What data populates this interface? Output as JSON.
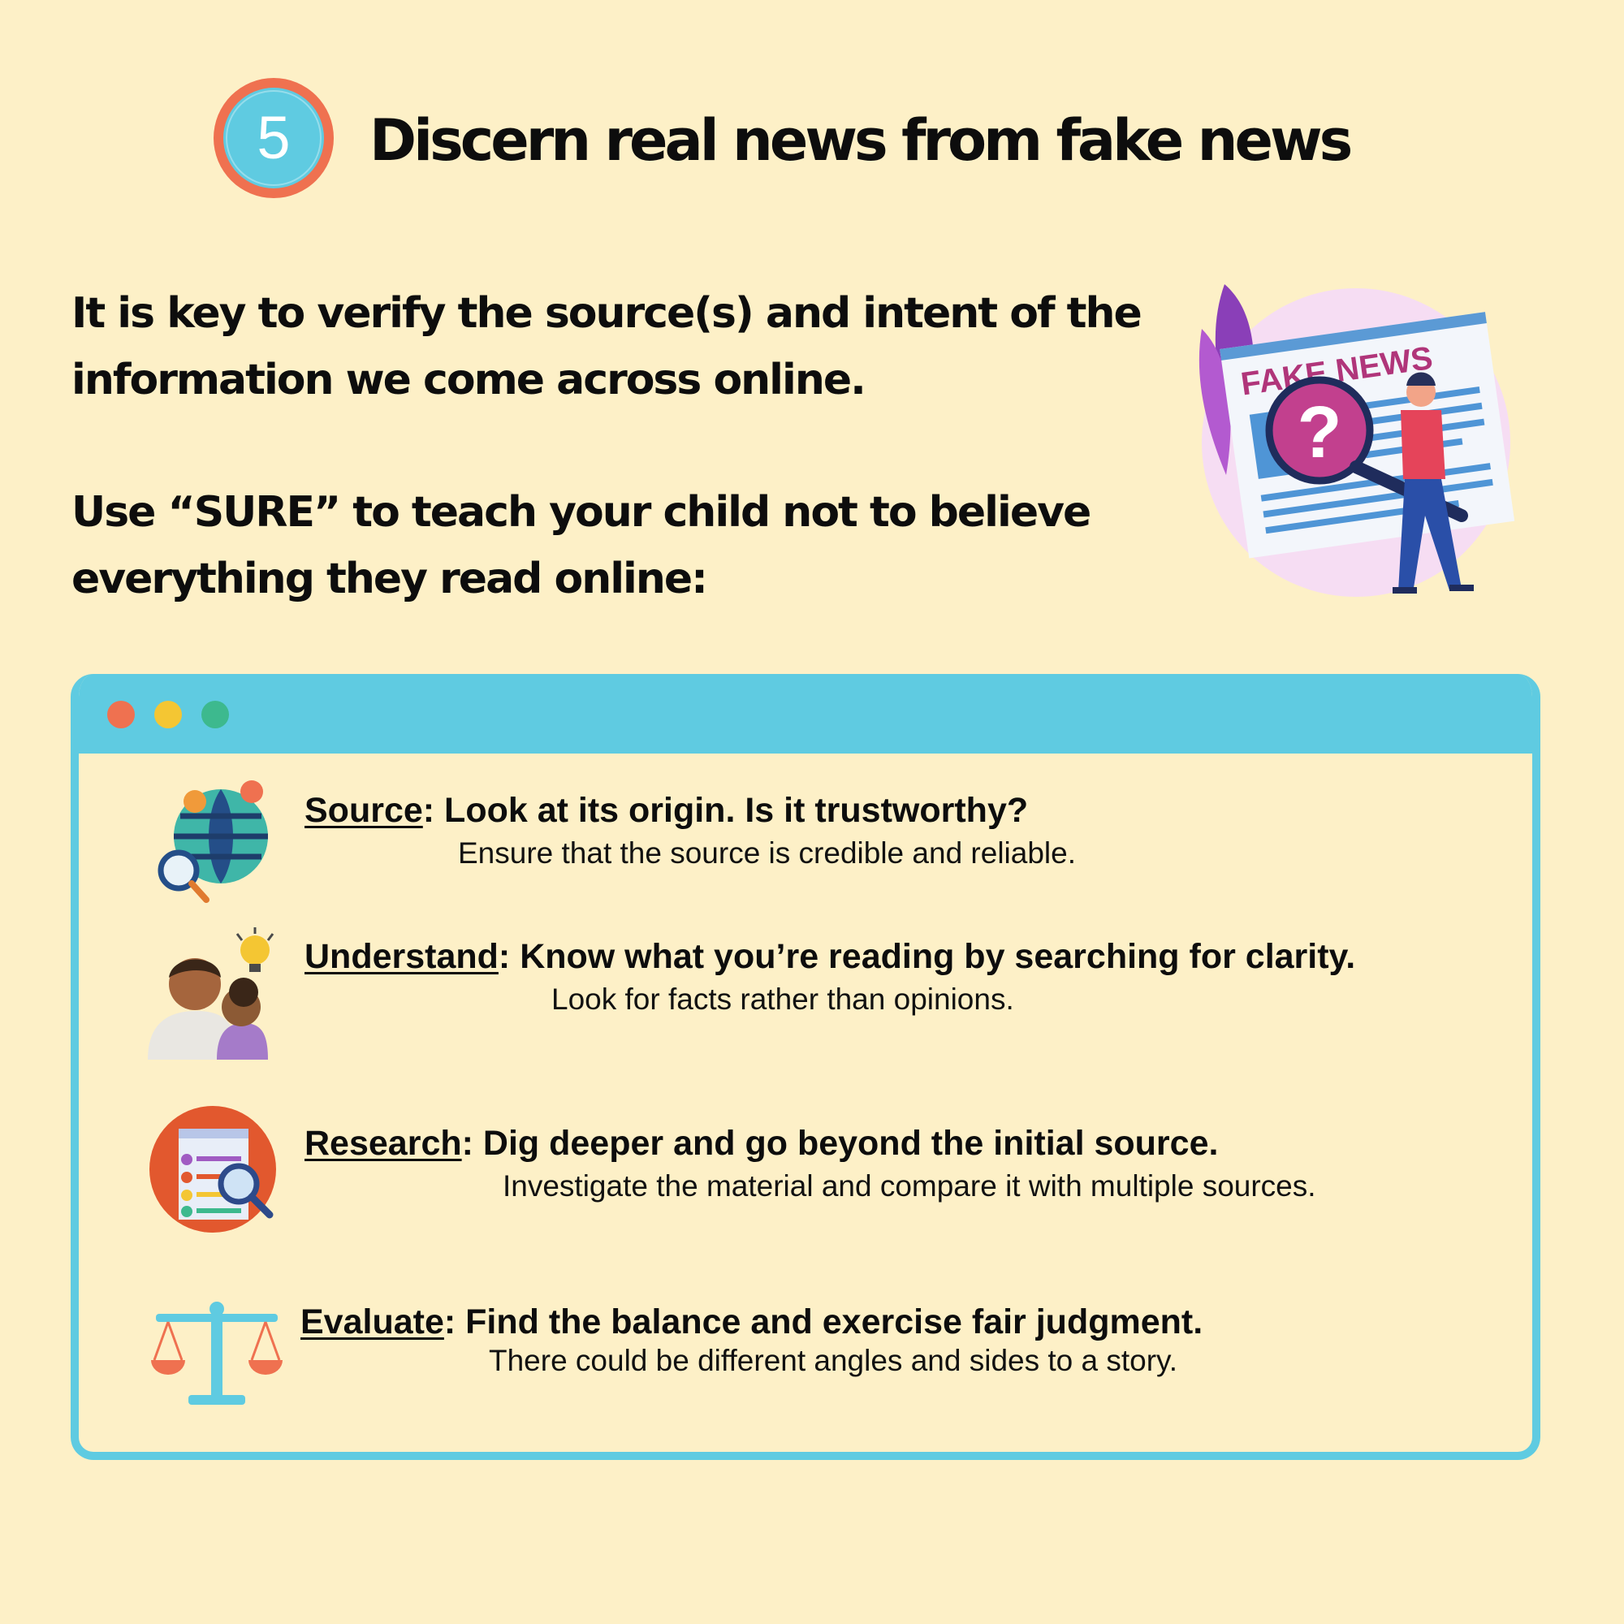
{
  "header": {
    "step_number": "5",
    "title": "Discern real news from fake news"
  },
  "intro": {
    "paragraph_1": "It is key to verify the source(s) and intent of the information we come across online.",
    "paragraph_2": "Use “SURE” to teach your child not to believe everything they read online:"
  },
  "illustration": {
    "newspaper_headline": "FAKE NEWS",
    "question_mark": "?"
  },
  "colors": {
    "background": "#fdf0c7",
    "window_frame": "#5fcbe1",
    "badge_ring": "#ef7150",
    "badge_fill": "#5fcbe1",
    "dot_red": "#ef7150",
    "dot_yellow": "#f4c633",
    "dot_green": "#3db98e"
  },
  "sure": {
    "items": [
      {
        "icon": "globe-icon",
        "keyword": "Source",
        "heading": ": Look at its origin. Is it trustworthy?",
        "text": "Ensure that the source is credible and reliable."
      },
      {
        "icon": "parent-child-idea-icon",
        "keyword": "Understand",
        "heading": ": Know what you’re reading by searching for clarity.",
        "text": "Look for facts rather than opinions."
      },
      {
        "icon": "document-search-icon",
        "keyword": "Research",
        "heading": ": Dig deeper and go beyond the initial source.",
        "text": "Investigate the material and compare it with multiple sources."
      },
      {
        "icon": "balance-scale-icon",
        "keyword": "Evaluate",
        "heading": ": Find the balance and exercise fair judgment.",
        "text": "There could be different angles and sides to a story."
      }
    ]
  }
}
